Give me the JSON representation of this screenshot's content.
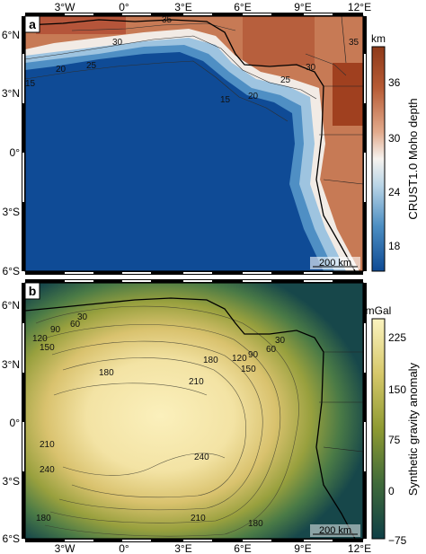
{
  "panel_a": {
    "label": "a",
    "colorbar": {
      "unit": "km",
      "title": "CRUST1.0 Moho depth",
      "ticks": [
        "36",
        "30",
        "24",
        "18"
      ],
      "colors": [
        "#8e3a1a",
        "#c06a44",
        "#e6b49a",
        "#f6f3ef",
        "#b8d4e6",
        "#4c8ec2",
        "#0e4a94"
      ]
    },
    "contours": [
      "35",
      "30",
      "25",
      "20",
      "15",
      "20",
      "15",
      "25",
      "30",
      "35"
    ],
    "scalebar": "200 km",
    "lat_ticks": [
      "6°N",
      "3°N",
      "0°",
      "3°S",
      "6°S"
    ],
    "lon_ticks_top": [
      "3°W",
      "0°",
      "3°E",
      "6°E",
      "9°E",
      "12°E"
    ]
  },
  "panel_b": {
    "label": "b",
    "colorbar": {
      "unit": "mGal",
      "title": "Synthetic gravity anomaly",
      "ticks": [
        "225",
        "150",
        "75",
        "0",
        "−75"
      ],
      "colors": [
        "#fbf3bf",
        "#d6c86a",
        "#8e9a32",
        "#3f6a3a",
        "#0f3f46"
      ]
    },
    "contours": [
      "30",
      "60",
      "90",
      "120",
      "150",
      "180",
      "210",
      "240",
      "240",
      "210",
      "180",
      "180",
      "90",
      "60",
      "30",
      "120",
      "150",
      "180",
      "210"
    ],
    "scalebar": "200 km",
    "lat_ticks": [
      "6°N",
      "3°N",
      "0°",
      "3°S",
      "6°S"
    ],
    "lon_ticks_bottom": [
      "3°W",
      "0°",
      "3°E",
      "6°E",
      "9°E",
      "12°E"
    ]
  },
  "colors": {
    "frame": "#000000",
    "coast": "#000000",
    "contour": "#333333"
  }
}
